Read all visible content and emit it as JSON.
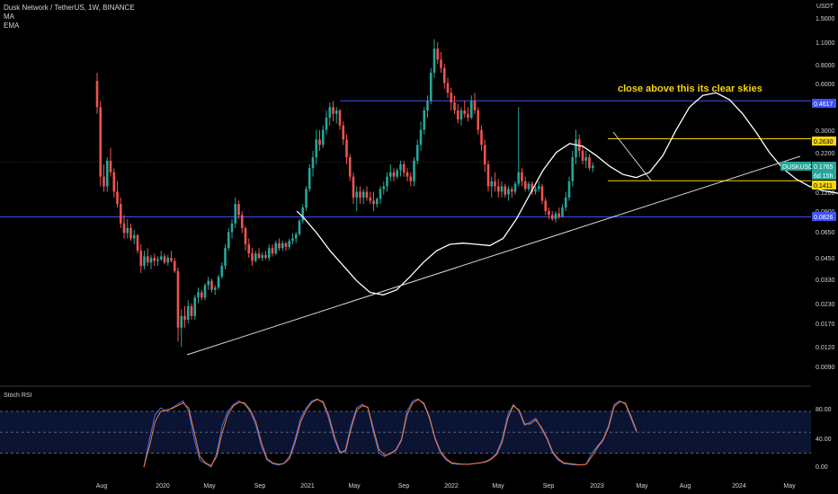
{
  "header": {
    "pair": "Dusk Network / TetherUS, 1W, BINANCE",
    "indicator1": "MA",
    "indicator2": "EMA",
    "currency": "USDT",
    "rsi_label": "Stoch RSI"
  },
  "annotation": "close above this its clear skies",
  "colors": {
    "up": "#26a69a",
    "down": "#ef5350",
    "level": "#3f51f5",
    "yellow": "#f5d60a",
    "rsi_k": "#3f6ff5",
    "rsi_d": "#ff7a2e",
    "line": "#ffffff"
  },
  "chart_data": {
    "type": "candlestick",
    "scale": "log",
    "x_ticks": [
      "Aug",
      "2020",
      "May",
      "Sep",
      "2021",
      "May",
      "Sep",
      "2022",
      "May",
      "Sep",
      "2023",
      "May",
      "Aug",
      "2024",
      "May"
    ],
    "y_ticks": [
      "1.5000",
      "1.1000",
      "0.8000",
      "0.6000",
      "0.3000",
      "0.2200",
      "0.1200",
      "0.0900",
      "0.0650",
      "0.0450",
      "0.0330",
      "0.0230",
      "0.0170",
      "0.0120",
      "0.0090"
    ],
    "y_tick_values": [
      1.5,
      1.1,
      0.8,
      0.6,
      0.3,
      0.22,
      0.12,
      0.09,
      0.065,
      0.045,
      0.033,
      0.023,
      0.017,
      0.012,
      0.009
    ],
    "price_labels": [
      {
        "text": "0.4617",
        "value": 0.4617,
        "style": "level"
      },
      {
        "text": "0.2630",
        "value": 0.263,
        "style": "yellow"
      },
      {
        "text": "DUSKUSDT",
        "value": 0.1765,
        "style": "ticker"
      },
      {
        "text": "0.1765",
        "value": 0.1765,
        "style": "current"
      },
      {
        "text": "6d 15h",
        "value": 0.16,
        "style": "countdown"
      },
      {
        "text": "0.1411",
        "value": 0.1411,
        "style": "yellow"
      },
      {
        "text": "0.0826",
        "value": 0.0826,
        "style": "level"
      }
    ],
    "horizontal_levels": [
      0.4617,
      0.0826
    ],
    "yellow_levels": [
      0.263,
      0.1411
    ],
    "candles": [
      [
        0.62,
        0.7,
        0.38,
        0.42
      ],
      [
        0.42,
        0.46,
        0.13,
        0.15
      ],
      [
        0.15,
        0.18,
        0.12,
        0.13
      ],
      [
        0.13,
        0.2,
        0.12,
        0.19
      ],
      [
        0.19,
        0.23,
        0.15,
        0.16
      ],
      [
        0.16,
        0.17,
        0.11,
        0.12
      ],
      [
        0.12,
        0.14,
        0.095,
        0.1
      ],
      [
        0.1,
        0.11,
        0.07,
        0.075
      ],
      [
        0.075,
        0.085,
        0.06,
        0.065
      ],
      [
        0.065,
        0.08,
        0.06,
        0.07
      ],
      [
        0.07,
        0.075,
        0.058,
        0.06
      ],
      [
        0.06,
        0.068,
        0.055,
        0.063
      ],
      [
        0.063,
        0.064,
        0.048,
        0.05
      ],
      [
        0.05,
        0.055,
        0.036,
        0.04
      ],
      [
        0.04,
        0.05,
        0.038,
        0.046
      ],
      [
        0.046,
        0.052,
        0.04,
        0.042
      ],
      [
        0.042,
        0.047,
        0.038,
        0.045
      ],
      [
        0.045,
        0.048,
        0.04,
        0.043
      ],
      [
        0.043,
        0.046,
        0.04,
        0.044
      ],
      [
        0.044,
        0.05,
        0.043,
        0.046
      ],
      [
        0.046,
        0.048,
        0.041,
        0.042
      ],
      [
        0.042,
        0.047,
        0.04,
        0.045
      ],
      [
        0.045,
        0.05,
        0.042,
        0.043
      ],
      [
        0.043,
        0.045,
        0.036,
        0.037
      ],
      [
        0.037,
        0.039,
        0.013,
        0.016
      ],
      [
        0.016,
        0.021,
        0.012,
        0.019
      ],
      [
        0.019,
        0.022,
        0.016,
        0.018
      ],
      [
        0.018,
        0.024,
        0.017,
        0.022
      ],
      [
        0.022,
        0.023,
        0.018,
        0.019
      ],
      [
        0.019,
        0.026,
        0.018,
        0.025
      ],
      [
        0.025,
        0.029,
        0.023,
        0.027
      ],
      [
        0.027,
        0.028,
        0.024,
        0.025
      ],
      [
        0.025,
        0.031,
        0.024,
        0.03
      ],
      [
        0.03,
        0.034,
        0.028,
        0.032
      ],
      [
        0.032,
        0.033,
        0.027,
        0.028
      ],
      [
        0.028,
        0.03,
        0.026,
        0.029
      ],
      [
        0.029,
        0.035,
        0.028,
        0.034
      ],
      [
        0.034,
        0.042,
        0.033,
        0.04
      ],
      [
        0.04,
        0.055,
        0.038,
        0.052
      ],
      [
        0.052,
        0.07,
        0.05,
        0.066
      ],
      [
        0.066,
        0.08,
        0.06,
        0.075
      ],
      [
        0.075,
        0.11,
        0.07,
        0.1
      ],
      [
        0.1,
        0.105,
        0.08,
        0.085
      ],
      [
        0.085,
        0.09,
        0.065,
        0.07
      ],
      [
        0.07,
        0.072,
        0.05,
        0.055
      ],
      [
        0.055,
        0.06,
        0.045,
        0.048
      ],
      [
        0.048,
        0.052,
        0.04,
        0.043
      ],
      [
        0.043,
        0.05,
        0.042,
        0.048
      ],
      [
        0.048,
        0.052,
        0.044,
        0.045
      ],
      [
        0.045,
        0.049,
        0.043,
        0.047
      ],
      [
        0.047,
        0.05,
        0.044,
        0.045
      ],
      [
        0.045,
        0.055,
        0.043,
        0.052
      ],
      [
        0.052,
        0.055,
        0.046,
        0.048
      ],
      [
        0.048,
        0.058,
        0.047,
        0.056
      ],
      [
        0.056,
        0.06,
        0.05,
        0.052
      ],
      [
        0.052,
        0.058,
        0.05,
        0.056
      ],
      [
        0.056,
        0.057,
        0.05,
        0.053
      ],
      [
        0.053,
        0.06,
        0.051,
        0.058
      ],
      [
        0.058,
        0.065,
        0.055,
        0.06
      ],
      [
        0.06,
        0.066,
        0.056,
        0.064
      ],
      [
        0.064,
        0.08,
        0.062,
        0.078
      ],
      [
        0.078,
        0.1,
        0.075,
        0.095
      ],
      [
        0.095,
        0.13,
        0.09,
        0.125
      ],
      [
        0.125,
        0.18,
        0.12,
        0.17
      ],
      [
        0.17,
        0.22,
        0.15,
        0.2
      ],
      [
        0.2,
        0.3,
        0.18,
        0.26
      ],
      [
        0.26,
        0.3,
        0.22,
        0.24
      ],
      [
        0.24,
        0.32,
        0.23,
        0.3
      ],
      [
        0.3,
        0.4,
        0.28,
        0.36
      ],
      [
        0.36,
        0.45,
        0.32,
        0.42
      ],
      [
        0.42,
        0.46,
        0.34,
        0.38
      ],
      [
        0.38,
        0.42,
        0.33,
        0.4
      ],
      [
        0.4,
        0.41,
        0.3,
        0.32
      ],
      [
        0.32,
        0.34,
        0.24,
        0.26
      ],
      [
        0.26,
        0.28,
        0.18,
        0.2
      ],
      [
        0.2,
        0.21,
        0.14,
        0.15
      ],
      [
        0.15,
        0.16,
        0.1,
        0.11
      ],
      [
        0.11,
        0.13,
        0.09,
        0.12
      ],
      [
        0.12,
        0.13,
        0.1,
        0.11
      ],
      [
        0.11,
        0.125,
        0.1,
        0.12
      ],
      [
        0.12,
        0.13,
        0.105,
        0.11
      ],
      [
        0.11,
        0.12,
        0.1,
        0.105
      ],
      [
        0.105,
        0.12,
        0.09,
        0.1
      ],
      [
        0.1,
        0.11,
        0.095,
        0.108
      ],
      [
        0.108,
        0.13,
        0.1,
        0.125
      ],
      [
        0.125,
        0.14,
        0.115,
        0.13
      ],
      [
        0.13,
        0.16,
        0.12,
        0.15
      ],
      [
        0.15,
        0.18,
        0.14,
        0.16
      ],
      [
        0.16,
        0.17,
        0.14,
        0.15
      ],
      [
        0.15,
        0.17,
        0.145,
        0.165
      ],
      [
        0.165,
        0.19,
        0.15,
        0.18
      ],
      [
        0.18,
        0.19,
        0.15,
        0.16
      ],
      [
        0.16,
        0.17,
        0.14,
        0.15
      ],
      [
        0.15,
        0.16,
        0.13,
        0.14
      ],
      [
        0.14,
        0.2,
        0.13,
        0.19
      ],
      [
        0.19,
        0.26,
        0.18,
        0.24
      ],
      [
        0.24,
        0.34,
        0.22,
        0.3
      ],
      [
        0.3,
        0.42,
        0.28,
        0.4
      ],
      [
        0.4,
        0.5,
        0.36,
        0.46
      ],
      [
        0.46,
        0.75,
        0.44,
        0.7
      ],
      [
        0.7,
        1.15,
        0.65,
        1.0
      ],
      [
        1.0,
        1.1,
        0.8,
        0.85
      ],
      [
        0.85,
        0.95,
        0.7,
        0.75
      ],
      [
        0.75,
        0.8,
        0.55,
        0.6
      ],
      [
        0.6,
        0.65,
        0.48,
        0.52
      ],
      [
        0.52,
        0.56,
        0.4,
        0.45
      ],
      [
        0.45,
        0.5,
        0.38,
        0.4
      ],
      [
        0.4,
        0.44,
        0.33,
        0.35
      ],
      [
        0.35,
        0.42,
        0.32,
        0.4
      ],
      [
        0.4,
        0.46,
        0.36,
        0.38
      ],
      [
        0.38,
        0.42,
        0.34,
        0.36
      ],
      [
        0.36,
        0.5,
        0.35,
        0.46
      ],
      [
        0.46,
        0.52,
        0.38,
        0.4
      ],
      [
        0.4,
        0.42,
        0.28,
        0.3
      ],
      [
        0.3,
        0.32,
        0.22,
        0.24
      ],
      [
        0.24,
        0.26,
        0.16,
        0.18
      ],
      [
        0.18,
        0.19,
        0.12,
        0.13
      ],
      [
        0.13,
        0.15,
        0.11,
        0.14
      ],
      [
        0.14,
        0.16,
        0.12,
        0.13
      ],
      [
        0.13,
        0.145,
        0.11,
        0.12
      ],
      [
        0.12,
        0.14,
        0.11,
        0.13
      ],
      [
        0.13,
        0.135,
        0.11,
        0.115
      ],
      [
        0.115,
        0.13,
        0.105,
        0.125
      ],
      [
        0.125,
        0.13,
        0.11,
        0.12
      ],
      [
        0.12,
        0.14,
        0.115,
        0.135
      ],
      [
        0.135,
        0.42,
        0.13,
        0.16
      ],
      [
        0.16,
        0.17,
        0.13,
        0.14
      ],
      [
        0.14,
        0.15,
        0.12,
        0.125
      ],
      [
        0.125,
        0.14,
        0.12,
        0.135
      ],
      [
        0.135,
        0.14,
        0.115,
        0.12
      ],
      [
        0.12,
        0.13,
        0.115,
        0.125
      ],
      [
        0.125,
        0.14,
        0.12,
        0.13
      ],
      [
        0.13,
        0.135,
        0.1,
        0.105
      ],
      [
        0.105,
        0.11,
        0.085,
        0.09
      ],
      [
        0.09,
        0.095,
        0.08,
        0.085
      ],
      [
        0.085,
        0.09,
        0.078,
        0.08
      ],
      [
        0.08,
        0.09,
        0.076,
        0.087
      ],
      [
        0.087,
        0.095,
        0.08,
        0.083
      ],
      [
        0.083,
        0.1,
        0.082,
        0.095
      ],
      [
        0.095,
        0.12,
        0.09,
        0.11
      ],
      [
        0.11,
        0.15,
        0.105,
        0.14
      ],
      [
        0.14,
        0.22,
        0.13,
        0.2
      ],
      [
        0.2,
        0.3,
        0.18,
        0.26
      ],
      [
        0.26,
        0.28,
        0.2,
        0.22
      ],
      [
        0.22,
        0.24,
        0.18,
        0.19
      ],
      [
        0.19,
        0.22,
        0.17,
        0.2
      ],
      [
        0.2,
        0.21,
        0.165,
        0.17
      ],
      [
        0.17,
        0.185,
        0.16,
        0.1765
      ]
    ],
    "ma_line": [
      [
        60,
        0.09
      ],
      [
        62,
        0.082
      ],
      [
        66,
        0.065
      ],
      [
        70,
        0.05
      ],
      [
        74,
        0.04
      ],
      [
        78,
        0.032
      ],
      [
        82,
        0.027
      ],
      [
        86,
        0.026
      ],
      [
        90,
        0.028
      ],
      [
        94,
        0.034
      ],
      [
        98,
        0.042
      ],
      [
        102,
        0.05
      ],
      [
        106,
        0.055
      ],
      [
        110,
        0.056
      ],
      [
        114,
        0.055
      ],
      [
        118,
        0.054
      ],
      [
        122,
        0.06
      ],
      [
        126,
        0.08
      ],
      [
        130,
        0.115
      ],
      [
        134,
        0.165
      ],
      [
        138,
        0.215
      ],
      [
        142,
        0.245
      ],
      [
        146,
        0.235
      ],
      [
        150,
        0.205
      ],
      [
        154,
        0.175
      ],
      [
        158,
        0.155
      ],
      [
        162,
        0.148
      ],
      [
        166,
        0.16
      ],
      [
        170,
        0.205
      ],
      [
        174,
        0.3
      ],
      [
        178,
        0.42
      ],
      [
        182,
        0.5
      ],
      [
        186,
        0.52
      ],
      [
        190,
        0.47
      ],
      [
        194,
        0.38
      ],
      [
        198,
        0.29
      ],
      [
        202,
        0.215
      ],
      [
        206,
        0.17
      ],
      [
        210,
        0.145
      ],
      [
        214,
        0.13
      ],
      [
        218,
        0.122
      ],
      [
        222,
        0.118
      ],
      [
        226,
        0.112
      ],
      [
        230,
        0.103
      ],
      [
        234,
        0.096
      ],
      [
        238,
        0.098
      ],
      [
        242,
        0.104
      ],
      [
        246,
        0.118
      ],
      [
        250,
        0.136
      ],
      [
        254,
        0.148
      ]
    ],
    "trendlines": [
      {
        "from": [
          12,
          0.0108
        ],
        "to": [
          296,
          0.23
        ]
      },
      {
        "from": [
          230,
          0.29
        ],
        "to": [
          243,
          0.165
        ]
      }
    ],
    "stoch_rsi": {
      "y_ticks": [
        "80.00",
        "40.00",
        "0.00"
      ],
      "y_tick_values": [
        80,
        40,
        0
      ],
      "dashed_levels": [
        80,
        50,
        20
      ],
      "k": [
        0,
        40,
        75,
        85,
        80,
        85,
        90,
        95,
        80,
        40,
        10,
        5,
        0,
        20,
        60,
        80,
        90,
        95,
        90,
        80,
        60,
        30,
        10,
        5,
        3,
        5,
        15,
        40,
        70,
        85,
        95,
        98,
        92,
        70,
        40,
        20,
        25,
        60,
        85,
        90,
        85,
        50,
        20,
        15,
        20,
        25,
        40,
        80,
        95,
        98,
        90,
        70,
        40,
        20,
        10,
        5,
        4,
        4,
        4,
        5,
        6,
        8,
        12,
        20,
        40,
        75,
        90,
        80,
        60,
        65,
        70,
        55,
        40,
        20,
        10,
        5,
        4,
        3,
        3,
        4,
        20,
        30,
        40,
        60,
        90,
        95,
        90,
        70,
        50
      ],
      "d": [
        0,
        30,
        65,
        80,
        82,
        84,
        88,
        92,
        85,
        50,
        15,
        6,
        2,
        15,
        50,
        75,
        88,
        93,
        92,
        82,
        65,
        35,
        12,
        6,
        4,
        5,
        12,
        35,
        65,
        82,
        93,
        97,
        94,
        75,
        45,
        22,
        22,
        55,
        82,
        88,
        86,
        55,
        25,
        17,
        19,
        24,
        38,
        75,
        92,
        97,
        92,
        72,
        42,
        22,
        12,
        6,
        5,
        4,
        4,
        5,
        6,
        7,
        11,
        18,
        36,
        70,
        88,
        82,
        62,
        62,
        68,
        57,
        42,
        22,
        12,
        6,
        5,
        4,
        3,
        4,
        15,
        28,
        38,
        57,
        87,
        94,
        92,
        73,
        52
      ]
    }
  }
}
